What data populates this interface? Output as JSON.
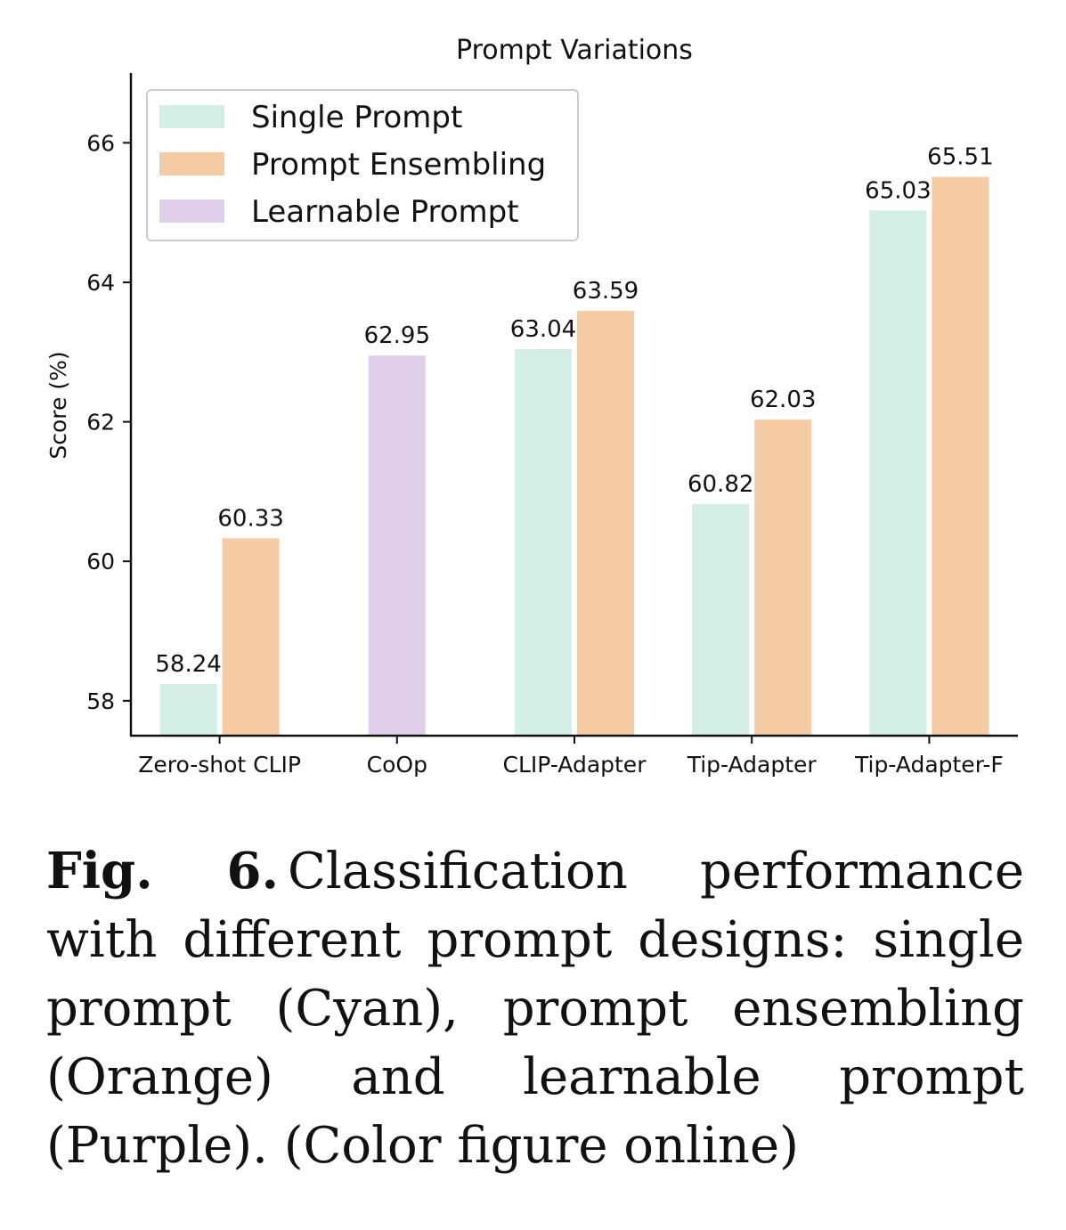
{
  "chart_data": {
    "type": "bar",
    "title": "Prompt Variations",
    "xlabel": "",
    "ylabel": "Score (%)",
    "ylim": [
      57.5,
      67.0
    ],
    "yticks": [
      58,
      60,
      62,
      64,
      66
    ],
    "categories": [
      "Zero-shot CLIP",
      "CoOp",
      "CLIP-Adapter",
      "Tip-Adapter",
      "Tip-Adapter-F"
    ],
    "series": [
      {
        "name": "Single Prompt",
        "color": "#d3ede7",
        "values": [
          58.24,
          null,
          63.04,
          60.82,
          65.03
        ]
      },
      {
        "name": "Prompt Ensembling",
        "color": "#f5cba4",
        "values": [
          60.33,
          null,
          63.59,
          62.03,
          65.51
        ]
      },
      {
        "name": "Learnable Prompt",
        "color": "#e0cfea",
        "values": [
          null,
          62.95,
          null,
          null,
          null
        ]
      }
    ],
    "legend_position": "top-left",
    "grid": false
  },
  "caption": {
    "label": "Fig. 6.",
    "text": "Classification performance with different prompt designs: single prompt (Cyan), prompt ensembling (Orange) and learnable prompt (Purple). (Color figure online)"
  }
}
